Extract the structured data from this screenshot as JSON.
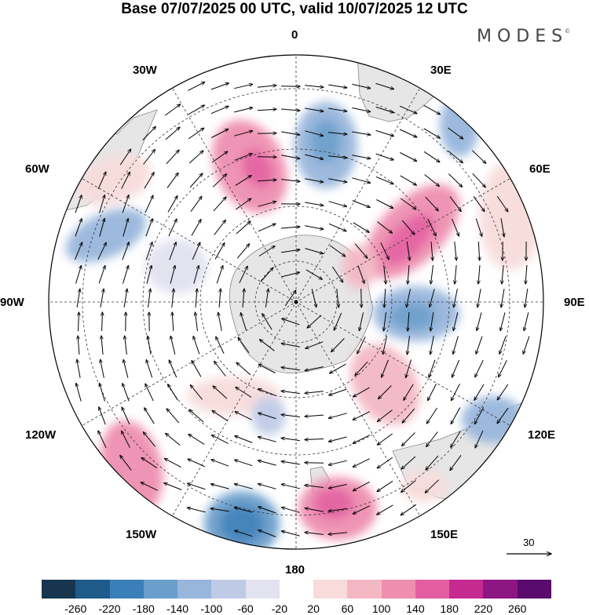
{
  "title": "Base 07/07/2025 00 UTC, valid 10/07/2025 12 UTC",
  "brand": {
    "text": "MODES",
    "mark": "©"
  },
  "map": {
    "projection": "south-polar-stereographic",
    "longitude_labels": {
      "n0": "0",
      "n30e": "30E",
      "n60e": "60E",
      "n90e": "90E",
      "n120e": "120E",
      "n150e": "150E",
      "n180": "180",
      "n150w": "150W",
      "n120w": "120W",
      "n90w": "90W",
      "n60w": "60W",
      "n30w": "30W"
    },
    "reference_vector": {
      "value": "30"
    }
  },
  "colorbar": {
    "ticks": [
      "-260",
      "-220",
      "-180",
      "-140",
      "-100",
      "-60",
      "-20",
      "20",
      "60",
      "100",
      "140",
      "180",
      "220",
      "260"
    ],
    "colors": [
      "#17354f",
      "#1f5b8a",
      "#3a7fb8",
      "#6a9ecb",
      "#98b6dc",
      "#bfcbe6",
      "#e2e2f0",
      "#ffffff",
      "#f8dcdc",
      "#f3b8c4",
      "#ee8fb0",
      "#e35ea0",
      "#c62990",
      "#8e1682",
      "#5a0b6e"
    ]
  }
}
